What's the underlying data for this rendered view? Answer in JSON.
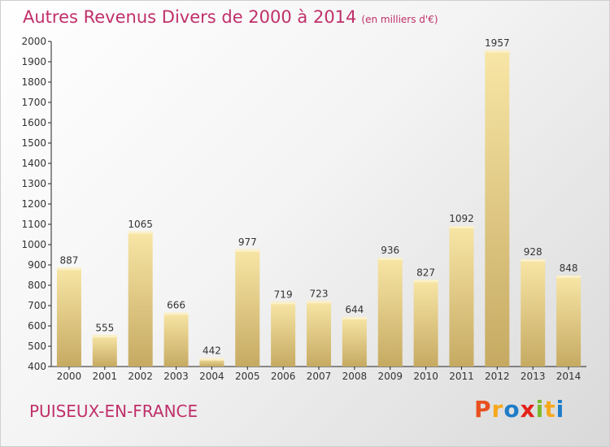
{
  "header": {
    "title": "Autres Revenus Divers de 2000 à 2014",
    "unit": "(en milliers d'€)"
  },
  "footer": {
    "city": "PUISEUX-EN-FRANCE",
    "logo": "Proxiti",
    "logo_colors": [
      "#e8501e",
      "#f6a81c",
      "#1e7dc8",
      "#e2231a",
      "#7cba2c",
      "#f6a81c",
      "#1e7dc8"
    ]
  },
  "colors": {
    "accent": "#c0306a",
    "bar_top": "#f8e6a6",
    "bar_bottom": "#c6aa62",
    "axis": "#222222"
  },
  "chart_data": {
    "type": "bar",
    "title": "Autres Revenus Divers de 2000 à 2014",
    "subtitle": "(en milliers d'€)",
    "xlabel": "",
    "ylabel": "",
    "categories": [
      "2000",
      "2001",
      "2002",
      "2003",
      "2004",
      "2005",
      "2006",
      "2007",
      "2008",
      "2009",
      "2010",
      "2011",
      "2012",
      "2013",
      "2014"
    ],
    "values": [
      887,
      555,
      1065,
      666,
      442,
      977,
      719,
      723,
      644,
      936,
      827,
      1092,
      1957,
      928,
      848
    ],
    "ylim": [
      400,
      2000
    ],
    "yticks": [
      400,
      500,
      600,
      700,
      800,
      900,
      1000,
      1100,
      1200,
      1300,
      1400,
      1500,
      1600,
      1700,
      1800,
      1900,
      2000
    ],
    "grid": false,
    "legend": "none"
  }
}
